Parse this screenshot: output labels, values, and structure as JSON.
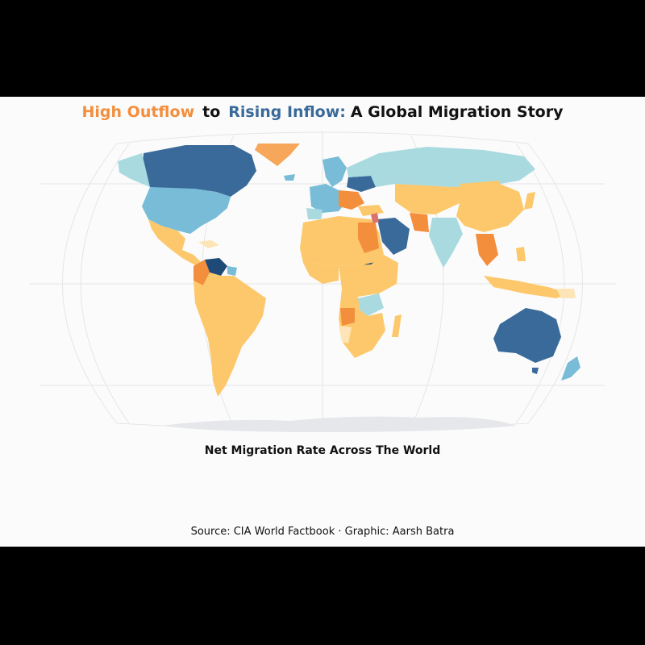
{
  "title": {
    "outflow": "High Outflow",
    "to": "to",
    "inflow": "Rising Inflow:",
    "rest": "A Global Migration Story"
  },
  "subtitle": "Net Migration Rate Across The World",
  "source": "Source: CIA World Factbook · Graphic: Aarsh Batra",
  "colors": {
    "high_outflow": "#f28e3c",
    "mild_outflow": "#fdc86b",
    "low_outflow": "#fde5b8",
    "neutral": "#e8e8e8",
    "low_inflow": "#a8dae0",
    "mid_inflow": "#78bcd8",
    "high_inflow": "#3a6a9a",
    "very_high_inflow": "#1f4a78",
    "antarctica": "#e5e7ea",
    "graticule": "#e6e6e6"
  }
}
